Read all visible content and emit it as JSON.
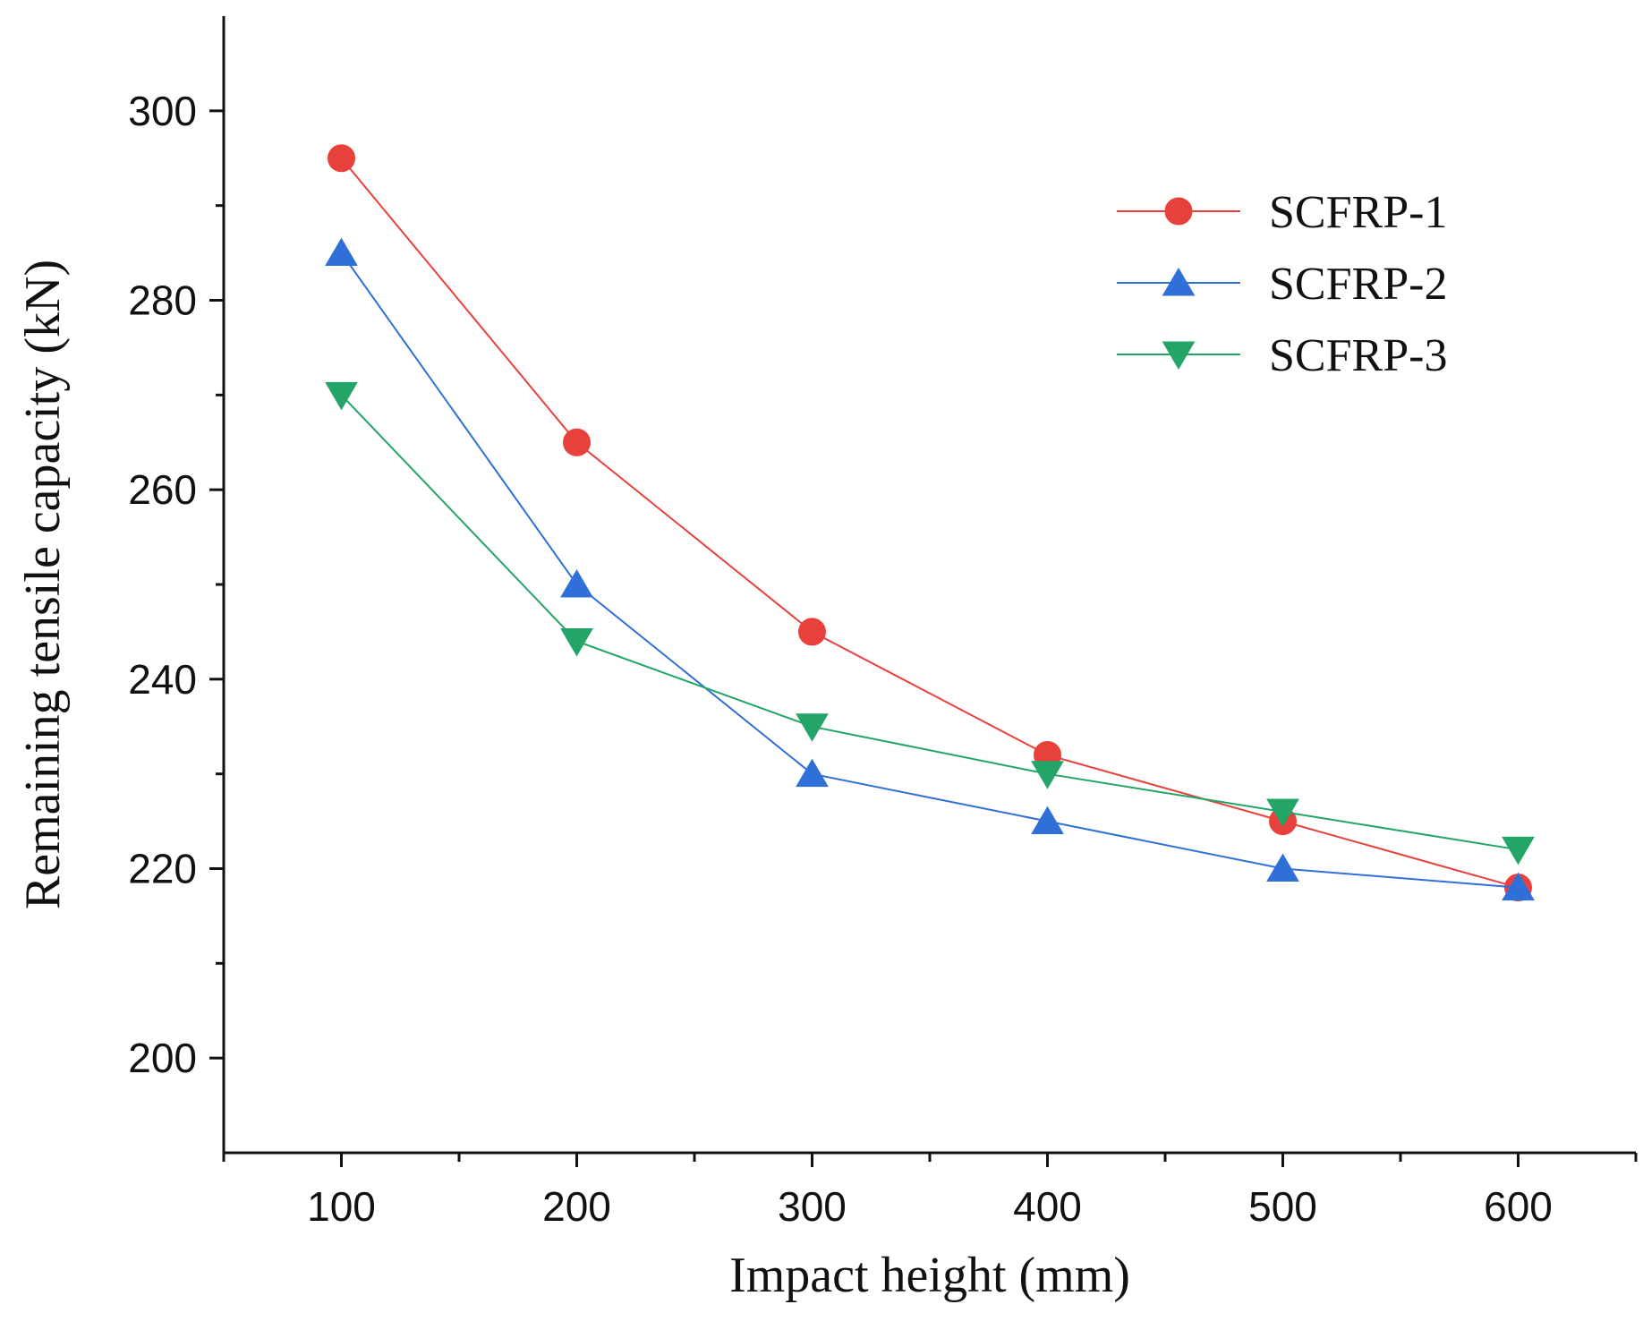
{
  "chart_data": {
    "type": "line",
    "title": "",
    "xlabel": "Impact height (mm)",
    "ylabel": "Remaining tensile capacity (kN)",
    "x": [
      100,
      200,
      300,
      400,
      500,
      600
    ],
    "xlim": [
      50,
      650
    ],
    "ylim": [
      190,
      310
    ],
    "xticks": [
      100,
      200,
      300,
      400,
      500,
      600
    ],
    "xtick_labels": [
      "100",
      "200",
      "300",
      "400",
      "500",
      "600"
    ],
    "xminor": [
      150,
      250,
      350,
      450,
      550
    ],
    "yticks": [
      200,
      220,
      240,
      260,
      280,
      300
    ],
    "ytick_labels": [
      "200",
      "220",
      "240",
      "260",
      "280",
      "300"
    ],
    "yminor": [
      210,
      230,
      250,
      270,
      290
    ],
    "grid": false,
    "legend_position": "top-right",
    "series": [
      {
        "name": "SCFRP-1",
        "marker": "circle",
        "color": "#e8413c",
        "values": [
          295,
          265,
          245,
          232,
          225,
          218
        ]
      },
      {
        "name": "SCFRP-2",
        "marker": "triangle-up",
        "color": "#2f6fd8",
        "values": [
          285,
          250,
          230,
          225,
          220,
          218
        ]
      },
      {
        "name": "SCFRP-3",
        "marker": "triangle-down",
        "color": "#23a567",
        "values": [
          270,
          244,
          235,
          230,
          226,
          222
        ]
      }
    ]
  }
}
